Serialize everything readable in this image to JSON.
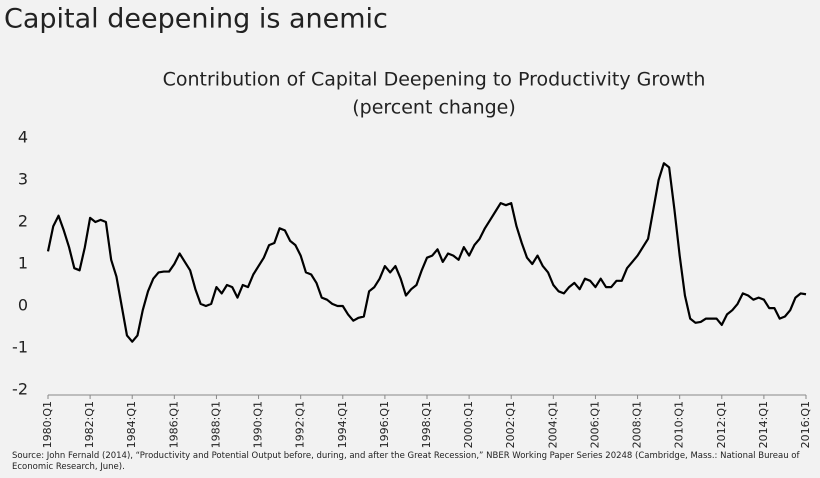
{
  "header": "Capital deepening is anemic",
  "chart_data": {
    "type": "line",
    "title": "Contribution of Capital Deepening to Productivity Growth",
    "subtitle": "(percent change)",
    "source": "Source:  John Fernald (2014), “Productivity and Potential Output before, during, and after the Great Recession,” NBER Working Paper Series 20248 (Cambridge, Mass.:  National Bureau of Economic Research, June).",
    "color": "#000000",
    "x": [
      1980,
      1980.25,
      1980.5,
      1980.75,
      1981,
      1981.25,
      1981.5,
      1981.75,
      1982,
      1982.25,
      1982.5,
      1982.75,
      1983,
      1983.25,
      1983.5,
      1983.75,
      1984,
      1984.25,
      1984.5,
      1984.75,
      1985,
      1985.25,
      1985.5,
      1985.75,
      1986,
      1986.25,
      1986.5,
      1986.75,
      1987,
      1987.25,
      1987.5,
      1987.75,
      1988,
      1988.25,
      1988.5,
      1988.75,
      1989,
      1989.25,
      1989.5,
      1989.75,
      1990,
      1990.25,
      1990.5,
      1990.75,
      1991,
      1991.25,
      1991.5,
      1991.75,
      1992,
      1992.25,
      1992.5,
      1992.75,
      1993,
      1993.25,
      1993.5,
      1993.75,
      1994,
      1994.25,
      1994.5,
      1994.75,
      1995,
      1995.25,
      1995.5,
      1995.75,
      1996,
      1996.25,
      1996.5,
      1996.75,
      1997,
      1997.25,
      1997.5,
      1997.75,
      1998,
      1998.25,
      1998.5,
      1998.75,
      1999,
      1999.25,
      1999.5,
      1999.75,
      2000,
      2000.25,
      2000.5,
      2000.75,
      2001,
      2001.25,
      2001.5,
      2001.75,
      2002,
      2002.25,
      2002.5,
      2002.75,
      2003,
      2003.25,
      2003.5,
      2003.75,
      2004,
      2004.25,
      2004.5,
      2004.75,
      2005,
      2005.25,
      2005.5,
      2005.75,
      2006,
      2006.25,
      2006.5,
      2006.75,
      2007,
      2007.25,
      2007.5,
      2007.75,
      2008,
      2008.25,
      2008.5,
      2008.75,
      2009,
      2009.25,
      2009.5,
      2009.75,
      2010,
      2010.25,
      2010.5,
      2010.75,
      2011,
      2011.25,
      2011.5,
      2011.75,
      2012,
      2012.25,
      2012.5,
      2012.75,
      2013,
      2013.25,
      2013.5,
      2013.75,
      2014,
      2014.25,
      2014.5,
      2014.75,
      2015,
      2015.25,
      2015.5,
      2015.75,
      2016
    ],
    "values": [
      1.3,
      1.9,
      2.15,
      1.8,
      1.4,
      0.9,
      0.85,
      1.4,
      2.1,
      2.0,
      2.05,
      2.0,
      1.1,
      0.7,
      0.0,
      -0.7,
      -0.85,
      -0.7,
      -0.1,
      0.35,
      0.65,
      0.8,
      0.82,
      0.82,
      1.0,
      1.25,
      1.05,
      0.85,
      0.4,
      0.05,
      0.0,
      0.05,
      0.45,
      0.3,
      0.5,
      0.45,
      0.2,
      0.5,
      0.45,
      0.75,
      0.95,
      1.15,
      1.45,
      1.5,
      1.85,
      1.8,
      1.55,
      1.45,
      1.2,
      0.8,
      0.75,
      0.55,
      0.2,
      0.15,
      0.05,
      0.0,
      0.0,
      -0.2,
      -0.35,
      -0.28,
      -0.25,
      0.35,
      0.45,
      0.65,
      0.95,
      0.8,
      0.95,
      0.65,
      0.25,
      0.4,
      0.5,
      0.85,
      1.15,
      1.2,
      1.35,
      1.05,
      1.25,
      1.2,
      1.1,
      1.4,
      1.2,
      1.45,
      1.6,
      1.85,
      2.05,
      2.25,
      2.45,
      2.4,
      2.45,
      1.9,
      1.5,
      1.15,
      1.0,
      1.2,
      0.95,
      0.8,
      0.5,
      0.35,
      0.3,
      0.45,
      0.55,
      0.4,
      0.65,
      0.6,
      0.45,
      0.65,
      0.45,
      0.45,
      0.6,
      0.6,
      0.9,
      1.05,
      1.2,
      1.4,
      1.6,
      2.3,
      3.0,
      3.4,
      3.3,
      2.3,
      1.2,
      0.25,
      -0.3,
      -0.4,
      -0.38,
      -0.3,
      -0.3,
      -0.3,
      -0.45,
      -0.2,
      -0.1,
      0.05,
      0.3,
      0.25,
      0.15,
      0.2,
      0.15,
      -0.05,
      -0.05,
      -0.3,
      -0.25,
      -0.1,
      0.2,
      0.3,
      0.28
    ],
    "xlim": [
      1980,
      2016
    ],
    "xticks": [
      {
        "value": 1980,
        "label": "1980:Q1"
      },
      {
        "value": 1982,
        "label": "1982:Q1"
      },
      {
        "value": 1984,
        "label": "1984:Q1"
      },
      {
        "value": 1986,
        "label": "1986:Q1"
      },
      {
        "value": 1988,
        "label": "1988:Q1"
      },
      {
        "value": 1990,
        "label": "1990:Q1"
      },
      {
        "value": 1992,
        "label": "1992:Q1"
      },
      {
        "value": 1994,
        "label": "1994:Q1"
      },
      {
        "value": 1996,
        "label": "1996:Q1"
      },
      {
        "value": 1998,
        "label": "1998:Q1"
      },
      {
        "value": 2000,
        "label": "2000:Q1"
      },
      {
        "value": 2002,
        "label": "2002:Q1"
      },
      {
        "value": 2004,
        "label": "2004:Q1"
      },
      {
        "value": 2006,
        "label": "2006:Q1"
      },
      {
        "value": 2008,
        "label": "2008:Q1"
      },
      {
        "value": 2010,
        "label": "2010:Q1"
      },
      {
        "value": 2012,
        "label": "2012:Q1"
      },
      {
        "value": 2014,
        "label": "2014:Q1"
      },
      {
        "value": 2016,
        "label": "2016:Q1"
      }
    ],
    "ylim": [
      -2,
      4
    ],
    "yticks": [
      -2,
      -1,
      0,
      1,
      2,
      3,
      4
    ],
    "grid": false
  }
}
